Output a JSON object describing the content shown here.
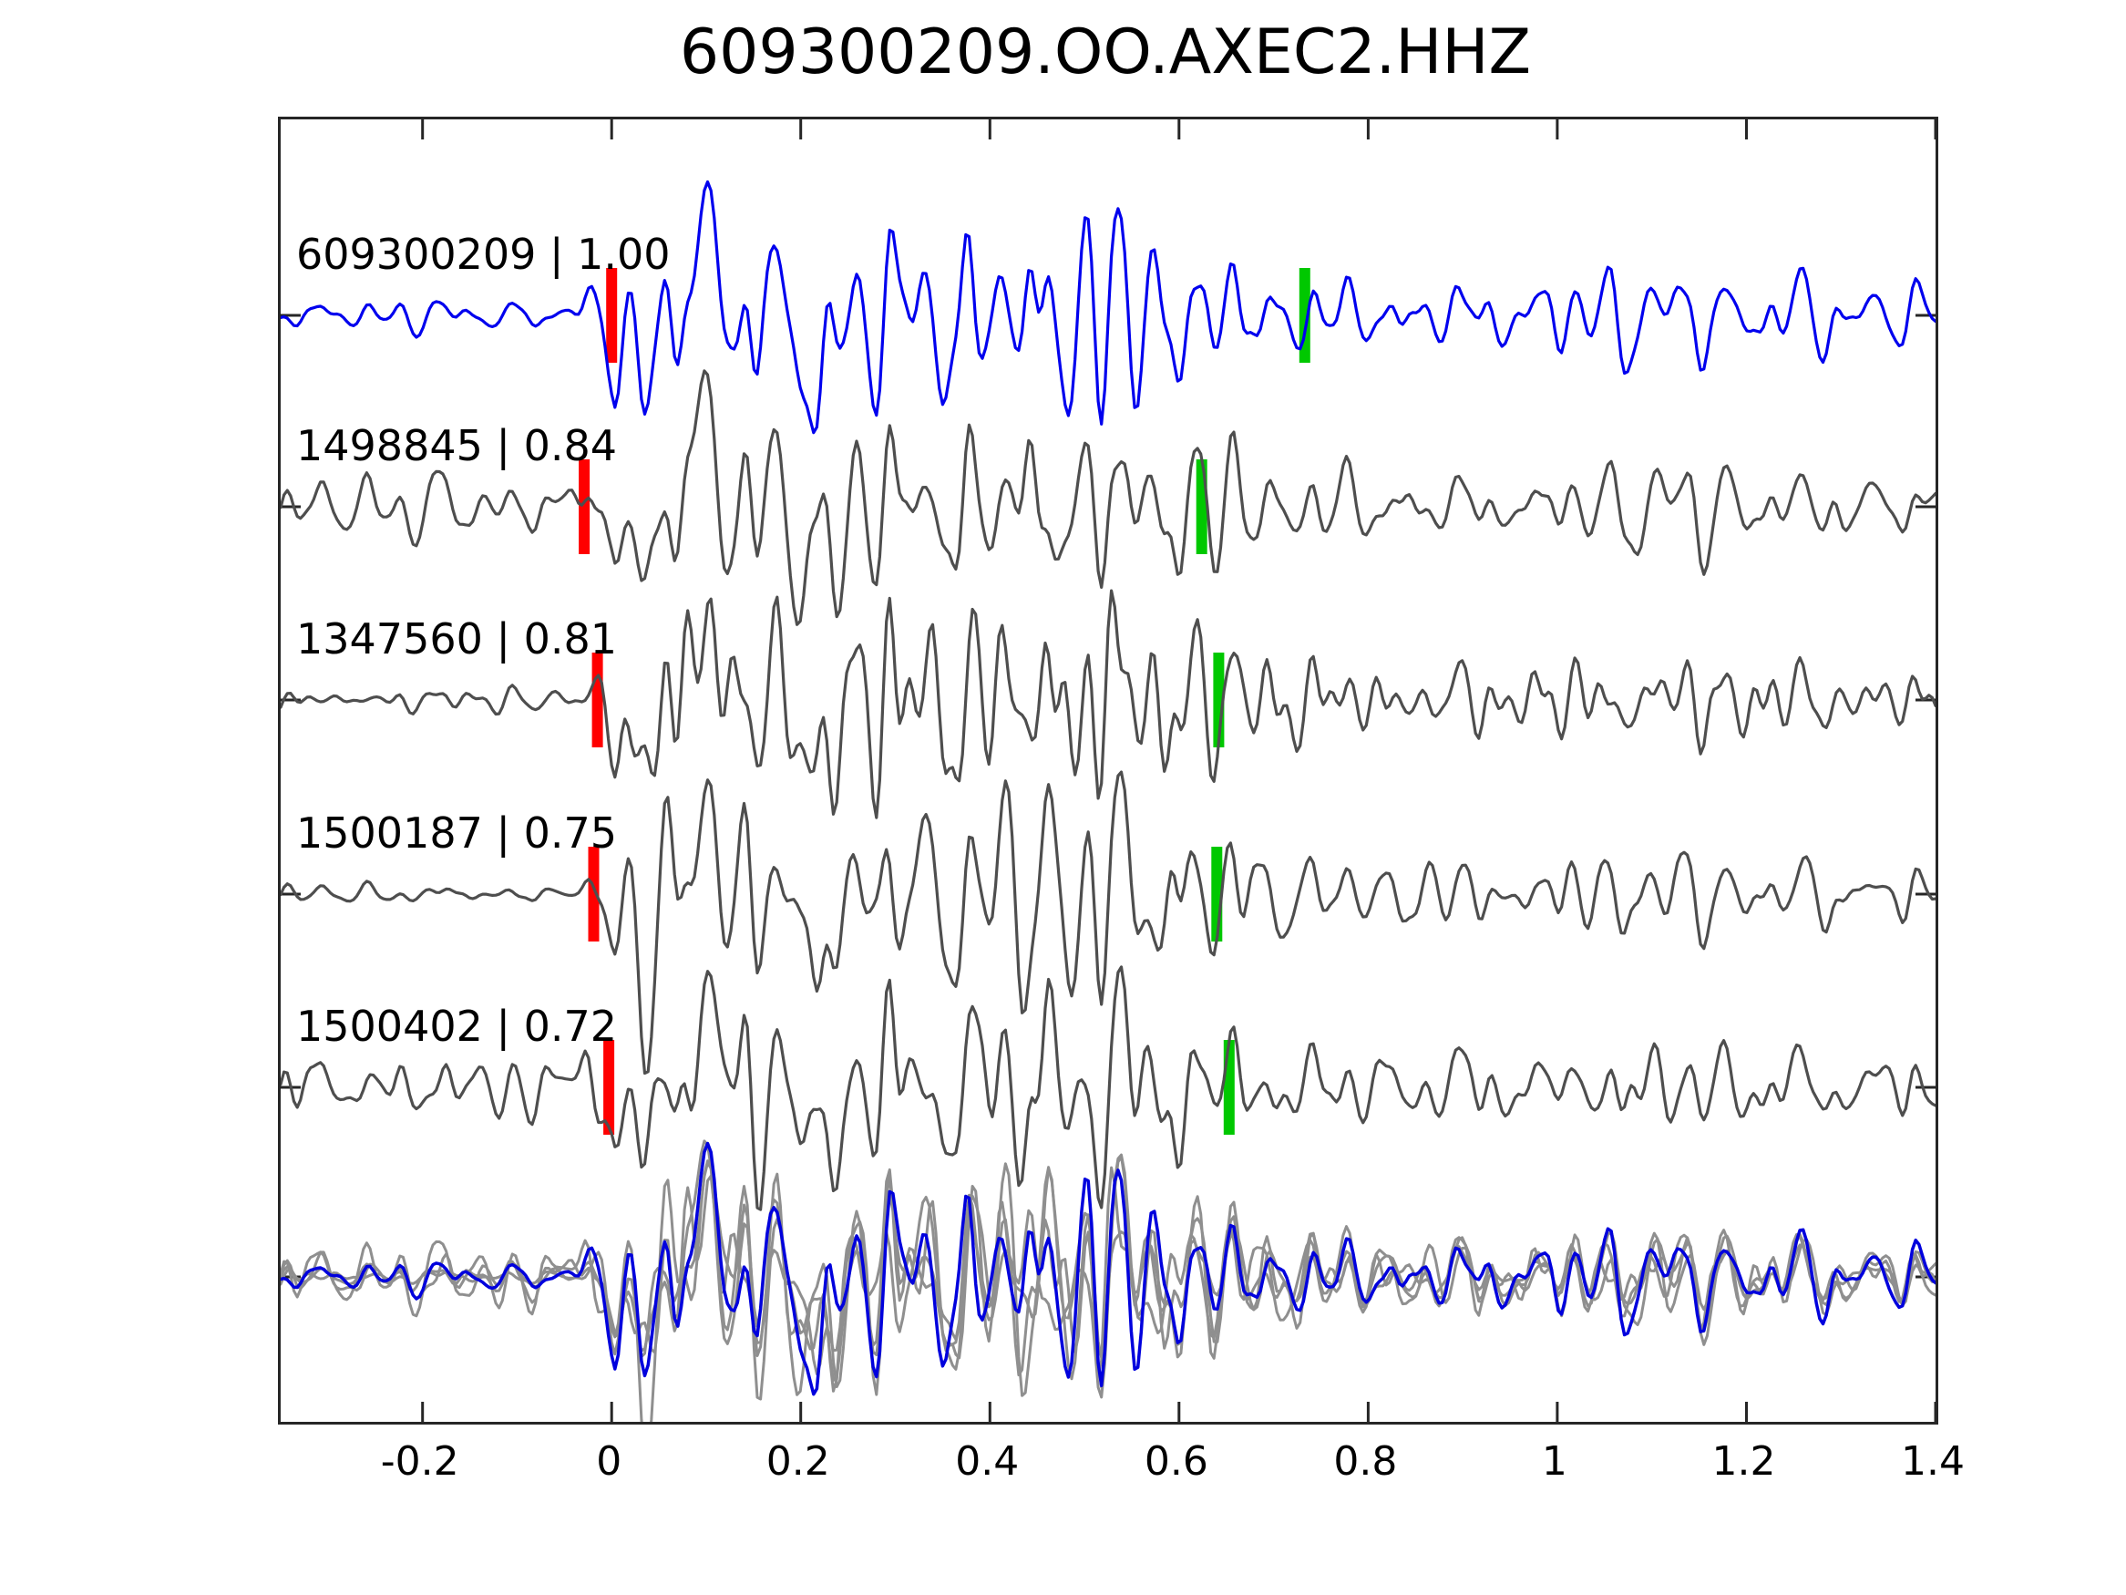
{
  "title": "609300209.OO.AXEC2.HHZ",
  "colors": {
    "template_trace": "#0000ee",
    "match_trace": "#4e4e4e",
    "overlay_member_trace": "#8f8f8f",
    "overlay_template_trace": "#0000dd",
    "red_pick": "#ff0000",
    "green_pick": "#00c800",
    "axis": "#262626",
    "text": "#000000"
  },
  "chart_data": {
    "type": "line",
    "title": "609300209.OO.AXEC2.HHZ",
    "xlabel": "",
    "ylabel": "",
    "xlim": [
      -0.35,
      1.4
    ],
    "grid": false,
    "legend": "none",
    "x_ticks": [
      {
        "value": -0.2,
        "label": "-0.2"
      },
      {
        "value": 0,
        "label": "0"
      },
      {
        "value": 0.2,
        "label": "0.2"
      },
      {
        "value": 0.4,
        "label": "0.4"
      },
      {
        "value": 0.6,
        "label": "0.6"
      },
      {
        "value": 0.8,
        "label": "0.8"
      },
      {
        "value": 1,
        "label": "1"
      },
      {
        "value": 1.2,
        "label": "1.2"
      },
      {
        "value": 1.4,
        "label": "1.4"
      }
    ],
    "series": [
      {
        "id": "609300209",
        "correlation": "1.00",
        "label": "609300209 | 1.00",
        "role": "template",
        "red_pick_x": 0.0,
        "green_pick_x": 0.733,
        "row": 0,
        "seed": 101,
        "pre_noise_mult": 1.3
      },
      {
        "id": "1498845",
        "correlation": "0.84",
        "label": "1498845 | 0.84",
        "role": "match",
        "red_pick_x": -0.029,
        "green_pick_x": 0.624,
        "row": 1,
        "seed": 202,
        "pre_noise_mult": 2.8
      },
      {
        "id": "1347560",
        "correlation": "0.81",
        "label": "1347560 | 0.81",
        "role": "match",
        "red_pick_x": -0.015,
        "green_pick_x": 0.642,
        "row": 2,
        "seed": 303,
        "pre_noise_mult": 1.0
      },
      {
        "id": "1500187",
        "correlation": "0.75",
        "label": "1500187 | 0.75",
        "role": "match",
        "red_pick_x": -0.019,
        "green_pick_x": 0.64,
        "row": 3,
        "seed": 404,
        "pre_noise_mult": 1.0
      },
      {
        "id": "1500402",
        "correlation": "0.72",
        "label": "1500402 | 0.72",
        "role": "match",
        "red_pick_x": -0.003,
        "green_pick_x": 0.653,
        "row": 4,
        "seed": 505,
        "pre_noise_mult": 3.0
      }
    ],
    "overlay_row": {
      "row": 5,
      "member_series": [
        1,
        2,
        3,
        4
      ],
      "template_series": 0
    },
    "waveform_model": {
      "comment": "stacked normalized seismograms; signal burst between x=0 and x=0.65",
      "envelope": [
        [
          -0.35,
          0.1
        ],
        [
          -0.05,
          0.1
        ],
        [
          0,
          0.4
        ],
        [
          0.03,
          1.0
        ],
        [
          0.1,
          0.92
        ],
        [
          0.2,
          0.88
        ],
        [
          0.3,
          0.95
        ],
        [
          0.42,
          1.02
        ],
        [
          0.5,
          1.08
        ],
        [
          0.58,
          0.95
        ],
        [
          0.63,
          0.75
        ],
        [
          0.7,
          0.48
        ],
        [
          0.78,
          0.36
        ],
        [
          0.95,
          0.32
        ],
        [
          1.05,
          0.44
        ],
        [
          1.15,
          0.44
        ],
        [
          1.25,
          0.32
        ],
        [
          1.4,
          0.32
        ]
      ],
      "onset_wavelets": [
        {
          "center": 0.038,
          "sigma": 0.022,
          "amp": -1.25
        },
        {
          "center": 0.085,
          "sigma": 0.03,
          "amp": 0.85
        },
        {
          "center": 0.21,
          "sigma": 0.018,
          "amp": -0.9
        }
      ],
      "base_freqs": [
        25,
        14,
        33,
        8.5,
        47,
        60
      ],
      "base_amps": [
        1.0,
        0.55,
        0.5,
        0.35,
        0.25,
        0.12
      ],
      "own_freq_range": [
        10,
        45
      ],
      "own_amps": [
        0.8,
        0.55,
        0.4,
        0.3
      ],
      "shared_weight": 0.72,
      "own_weight": 0.55,
      "shared_seed": 2024,
      "sample_step": 0.0035
    }
  }
}
